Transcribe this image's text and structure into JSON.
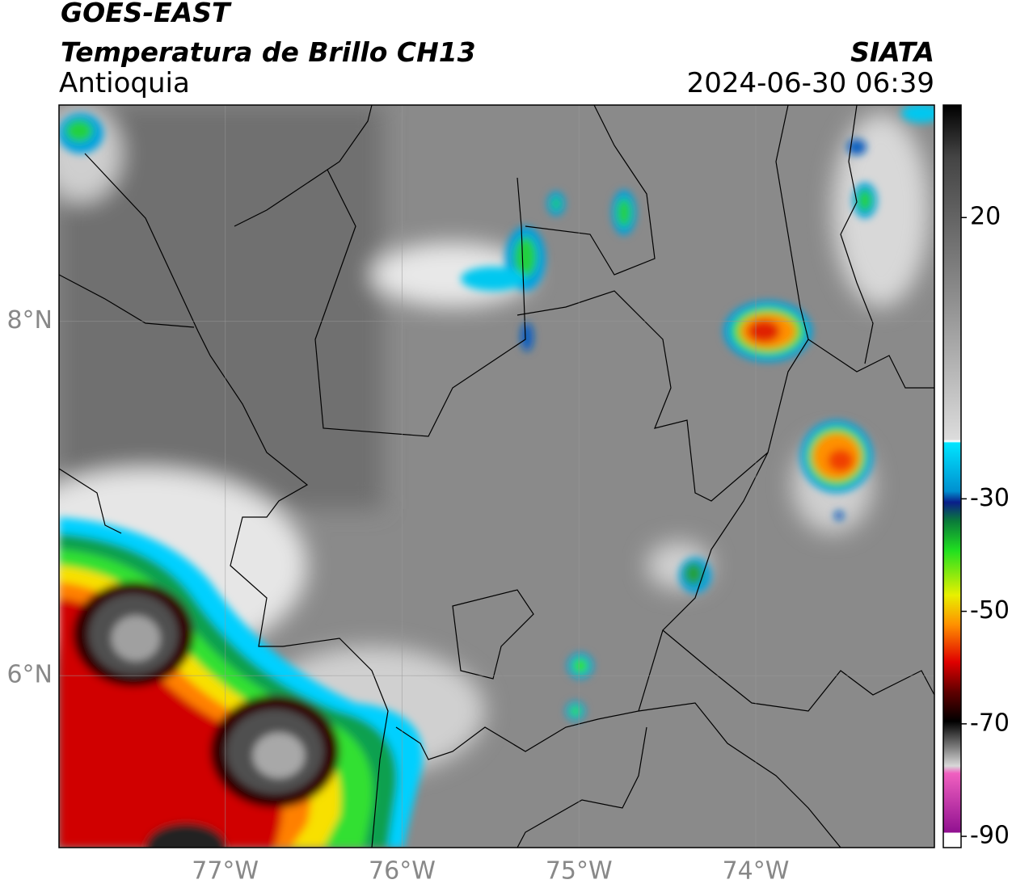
{
  "header": {
    "title": "GOES-EAST",
    "subtitle": "Temperatura de Brillo CH13",
    "region": "Antioquia",
    "source": "SIATA",
    "datetime": "2024-06-30 06:39"
  },
  "map": {
    "xlim": [
      -77.94,
      -72.99
    ],
    "ylim": [
      5.03,
      9.22
    ],
    "xticks": [
      {
        "value": -77,
        "label": "77°W"
      },
      {
        "value": -76,
        "label": "76°W"
      },
      {
        "value": -75,
        "label": "75°W"
      },
      {
        "value": -74,
        "label": "74°W"
      }
    ],
    "yticks": [
      {
        "value": 6,
        "label": "6°N"
      },
      {
        "value": 8,
        "label": "8°N"
      }
    ]
  },
  "colorbar": {
    "lim": [
      -92,
      40
    ],
    "ticks": [
      20,
      -30,
      -50,
      -70,
      -90
    ]
  }
}
